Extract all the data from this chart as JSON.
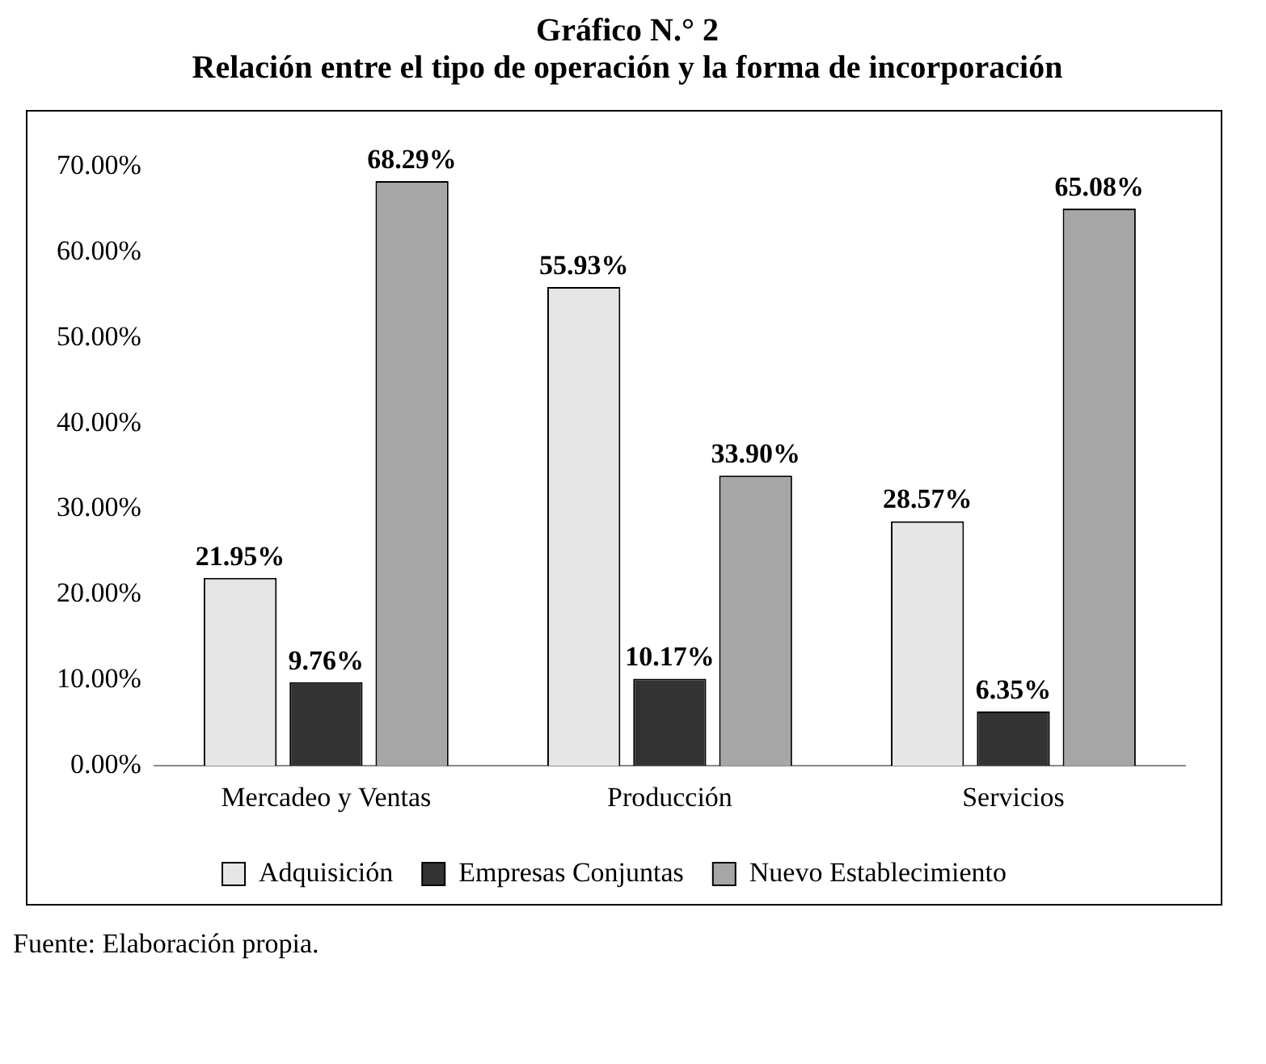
{
  "chart_data": {
    "type": "bar",
    "title": "Gráfico N.° 2",
    "subtitle": "Relación entre el tipo de operación y la forma de incorporación",
    "categories": [
      "Mercadeo y Ventas",
      "Producción",
      "Servicios"
    ],
    "series": [
      {
        "name": "Adquisición",
        "color": "#e6e6e6",
        "values": [
          21.95,
          55.93,
          28.57
        ],
        "value_labels": [
          "21.95%",
          "55.93%",
          "28.57%"
        ]
      },
      {
        "name": "Empresas Conjuntas",
        "color": "#333333",
        "values": [
          9.76,
          10.17,
          6.35
        ],
        "value_labels": [
          "9.76%",
          "10.17%",
          "6.35%"
        ]
      },
      {
        "name": "Nuevo Establecimiento",
        "color": "#a6a6a6",
        "values": [
          68.29,
          33.9,
          65.08
        ],
        "value_labels": [
          "68.29%",
          "33.90%",
          "65.08%"
        ]
      }
    ],
    "ylim": [
      0,
      70
    ],
    "yticks": [
      {
        "value": 0,
        "label": "0.00%"
      },
      {
        "value": 10,
        "label": "10.00%"
      },
      {
        "value": 20,
        "label": "20.00%"
      },
      {
        "value": 30,
        "label": "30.00%"
      },
      {
        "value": 40,
        "label": "40.00%"
      },
      {
        "value": 50,
        "label": "50.00%"
      },
      {
        "value": 60,
        "label": "60.00%"
      },
      {
        "value": 70,
        "label": "70.00%"
      }
    ],
    "grid": false,
    "legend": "bottom",
    "annotations": [
      "Fuente: Elaboración propia."
    ]
  }
}
